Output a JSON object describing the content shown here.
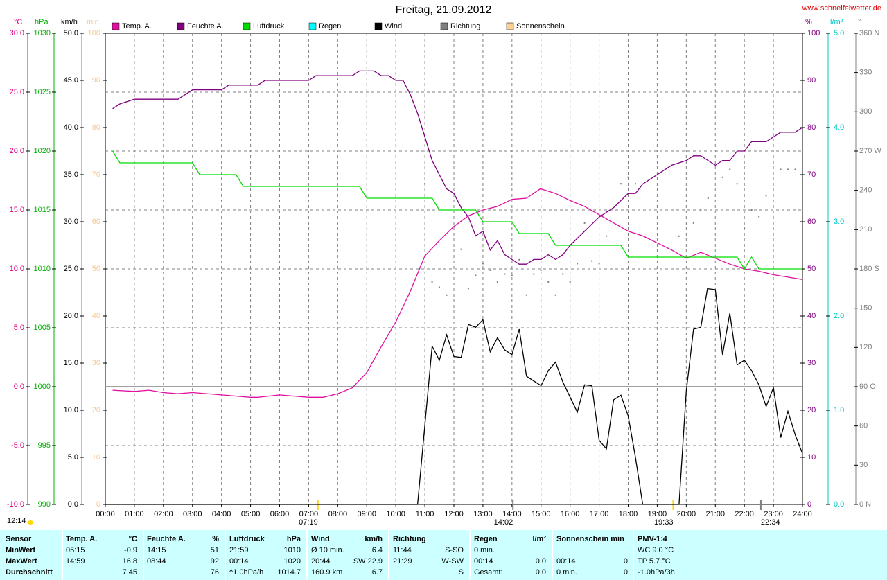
{
  "chart_data": {
    "type": "line",
    "title": "Freitag, 21.09.2012",
    "source": "www.schneifelwetter.de",
    "update_time": "12:14",
    "grid": true,
    "xlim": [
      0,
      24
    ],
    "xticks": [
      {
        "value": 0,
        "label": "00:00"
      },
      {
        "value": 1,
        "label": "01:00"
      },
      {
        "value": 2,
        "label": "02:00"
      },
      {
        "value": 3,
        "label": "03:00"
      },
      {
        "value": 4,
        "label": "04:00"
      },
      {
        "value": 5,
        "label": "05:00"
      },
      {
        "value": 6,
        "label": "06:00"
      },
      {
        "value": 7,
        "label": "07:00"
      },
      {
        "value": 8,
        "label": "08:00"
      },
      {
        "value": 9,
        "label": "09:00"
      },
      {
        "value": 10,
        "label": "10:00"
      },
      {
        "value": 11,
        "label": "11:00"
      },
      {
        "value": 12,
        "label": "12:00"
      },
      {
        "value": 13,
        "label": "13:00"
      },
      {
        "value": 14,
        "label": "14:00"
      },
      {
        "value": 15,
        "label": "15:00"
      },
      {
        "value": 16,
        "label": "16:00"
      },
      {
        "value": 17,
        "label": "17:00"
      },
      {
        "value": 18,
        "label": "18:00"
      },
      {
        "value": 19,
        "label": "19:00"
      },
      {
        "value": 20,
        "label": "20:00"
      },
      {
        "value": 21,
        "label": "21:00"
      },
      {
        "value": 22,
        "label": "22:00"
      },
      {
        "value": 23,
        "label": "23:00"
      },
      {
        "value": 24,
        "label": "24:00"
      }
    ],
    "time_markers": [
      {
        "value": 7.317,
        "label": "07:19",
        "color": "#ffd700"
      },
      {
        "value": 14.033,
        "label": "14:02",
        "color": "#808080"
      },
      {
        "value": 19.55,
        "label": "19:33",
        "color": "#ffd700"
      },
      {
        "value": 22.567,
        "label": "22:34",
        "color": "#808080"
      }
    ],
    "axes": {
      "temp": {
        "unit": "°C",
        "color": "#e0007f",
        "lim": [
          -10,
          30
        ],
        "ticks": [
          {
            "value": -10,
            "label": "-10.0"
          },
          {
            "value": -5,
            "label": "-5.0"
          },
          {
            "value": 0,
            "label": "0.0"
          },
          {
            "value": 5,
            "label": "5.0"
          },
          {
            "value": 10,
            "label": "10.0"
          },
          {
            "value": 15,
            "label": "15.0"
          },
          {
            "value": 20,
            "label": "20.0"
          },
          {
            "value": 25,
            "label": "25.0"
          },
          {
            "value": 30,
            "label": "30.0"
          }
        ]
      },
      "pressure": {
        "unit": "hPa",
        "color": "#00b000",
        "lim": [
          990,
          1030
        ],
        "ticks": [
          990,
          995,
          1000,
          1005,
          1010,
          1015,
          1020,
          1025,
          1030
        ]
      },
      "wind": {
        "unit": "km/h",
        "color": "#000000",
        "lim": [
          0,
          50
        ],
        "ticks": [
          {
            "value": 0,
            "label": "0.0"
          },
          {
            "value": 5,
            "label": "5.0"
          },
          {
            "value": 10,
            "label": "10.0"
          },
          {
            "value": 15,
            "label": "15.0"
          },
          {
            "value": 20,
            "label": "20.0"
          },
          {
            "value": 25,
            "label": "25.0"
          },
          {
            "value": 30,
            "label": "30.0"
          },
          {
            "value": 35,
            "label": "35.0"
          },
          {
            "value": 40,
            "label": "40.0"
          },
          {
            "value": 45,
            "label": "45.0"
          },
          {
            "value": 50,
            "label": "50.0"
          }
        ]
      },
      "sun": {
        "unit": "min",
        "color": "#f8c890",
        "lim": [
          0,
          100
        ],
        "ticks": [
          0,
          10,
          20,
          30,
          40,
          50,
          60,
          70,
          80,
          90,
          100
        ]
      },
      "humidity": {
        "unit": "%",
        "color": "#800080",
        "lim": [
          0,
          100
        ],
        "ticks": [
          0,
          10,
          20,
          30,
          40,
          50,
          60,
          70,
          80,
          90,
          100
        ]
      },
      "rain": {
        "unit": "l/m²",
        "color": "#00c8c8",
        "lim": [
          0,
          5
        ],
        "ticks": [
          {
            "value": 0,
            "label": "0.0"
          },
          {
            "value": 1,
            "label": "1.0"
          },
          {
            "value": 2,
            "label": "2.0"
          },
          {
            "value": 3,
            "label": "3.0"
          },
          {
            "value": 4,
            "label": "4.0"
          },
          {
            "value": 5,
            "label": "5.0"
          }
        ]
      },
      "direction": {
        "unit": "°",
        "color": "#808080",
        "lim": [
          0,
          360
        ],
        "ticks": [
          {
            "value": 0,
            "label": "0  N"
          },
          30,
          60,
          {
            "value": 90,
            "label": "90  O"
          },
          120,
          150,
          {
            "value": 180,
            "label": "180  S"
          },
          210,
          240,
          {
            "value": 270,
            "label": "270  W"
          },
          300,
          330,
          {
            "value": 360,
            "label": "360  N"
          }
        ]
      }
    },
    "series": [
      {
        "name": "Temp. A.",
        "color": "#e0109f",
        "axis": "temp",
        "type": "line",
        "x": [
          0.25,
          1,
          1.5,
          2,
          2.5,
          3,
          4,
          5,
          5.25,
          6,
          7,
          7.5,
          8,
          8.5,
          9,
          9.5,
          10,
          10.5,
          11,
          11.5,
          12,
          12.5,
          13,
          13.5,
          14,
          14.5,
          14.98,
          15.5,
          16,
          16.5,
          17,
          17.5,
          18,
          18.5,
          19,
          19.5,
          20,
          20.5,
          21,
          21.5,
          22,
          22.5,
          23,
          23.5,
          24
        ],
        "values": [
          -0.3,
          -0.4,
          -0.3,
          -0.5,
          -0.6,
          -0.5,
          -0.7,
          -0.9,
          -0.9,
          -0.7,
          -0.9,
          -0.9,
          -0.6,
          -0.1,
          1.2,
          3.4,
          5.5,
          8.1,
          11.1,
          12.4,
          13.6,
          14.5,
          15.0,
          15.3,
          15.9,
          16.0,
          16.8,
          16.4,
          15.8,
          15.3,
          14.6,
          13.9,
          13.2,
          12.8,
          12.2,
          11.6,
          10.9,
          11.4,
          10.9,
          10.4,
          10.0,
          9.8,
          9.5,
          9.3,
          9.1
        ]
      },
      {
        "name": "Feuchte A.",
        "color": "#800080",
        "axis": "humidity",
        "type": "line",
        "x": [
          0.25,
          0.5,
          1,
          2.5,
          2.75,
          3,
          4,
          4.25,
          5.25,
          5.5,
          7,
          7.25,
          8.5,
          8.75,
          9.25,
          9.5,
          9.75,
          10,
          10.25,
          10.5,
          10.75,
          11,
          11.25,
          11.5,
          11.75,
          12,
          12.25,
          12.5,
          12.75,
          13,
          13.25,
          13.5,
          13.75,
          14,
          14.25,
          14.5,
          14.75,
          15,
          15.25,
          15.5,
          15.75,
          16,
          16.5,
          17,
          17.5,
          18,
          18.25,
          18.5,
          19,
          19.5,
          20,
          20.25,
          20.5,
          21,
          21.25,
          21.5,
          21.75,
          22,
          22.25,
          22.75,
          23.25,
          23.75,
          24
        ],
        "values": [
          84,
          85,
          86,
          86,
          87,
          88,
          88,
          89,
          89,
          90,
          90,
          91,
          91,
          92,
          92,
          91,
          91,
          90,
          90,
          87,
          83,
          78,
          73,
          70,
          67,
          66,
          63,
          61,
          57,
          58,
          54,
          56,
          53,
          52,
          51,
          51,
          52,
          52,
          53,
          52,
          53,
          55,
          58,
          61,
          63,
          66,
          66,
          68,
          70,
          72,
          73,
          74,
          74,
          72,
          73,
          73,
          75,
          75,
          77,
          77,
          79,
          79,
          80
        ]
      },
      {
        "name": "Luftdruck",
        "color": "#00dd00",
        "axis": "pressure",
        "type": "line",
        "x": [
          0.25,
          0.5,
          3,
          3.25,
          4.5,
          4.75,
          8.75,
          9,
          11.25,
          11.5,
          12.75,
          13,
          14,
          14.25,
          15.25,
          15.5,
          17.75,
          18,
          21.75,
          22,
          22.25,
          22.5,
          24
        ],
        "values": [
          1020,
          1019,
          1019,
          1018,
          1018,
          1017,
          1017,
          1016,
          1016,
          1015,
          1015,
          1014,
          1014,
          1013,
          1013,
          1012,
          1012,
          1011,
          1011,
          1010,
          1011,
          1010,
          1010
        ]
      },
      {
        "name": "Regen",
        "color": "#00ffff",
        "axis": "rain",
        "type": "line",
        "x": [],
        "values": []
      },
      {
        "name": "Wind",
        "color": "#000000",
        "axis": "wind",
        "type": "line",
        "x": [
          0,
          10.75,
          11.25,
          11.5,
          11.75,
          12,
          12.25,
          12.5,
          12.75,
          13,
          13.25,
          13.5,
          13.75,
          14,
          14.25,
          14.5,
          15,
          15.25,
          15.5,
          15.75,
          16.25,
          16.5,
          16.75,
          17,
          17.25,
          17.5,
          17.75,
          18,
          18.25,
          18.5,
          19.75,
          20,
          20.25,
          20.5,
          20.73,
          21,
          21.25,
          21.5,
          21.75,
          22,
          22.25,
          22.5,
          22.75,
          23,
          23.25,
          23.5,
          23.75,
          24
        ],
        "values": [
          0,
          0,
          16.8,
          15.3,
          18.0,
          15.7,
          15.6,
          19.1,
          18.8,
          19.6,
          16.2,
          17.7,
          16.4,
          15.9,
          18.6,
          13.6,
          12.6,
          14.2,
          15.1,
          13.0,
          9.8,
          12.7,
          12.6,
          6.8,
          5.9,
          11.1,
          11.6,
          9.4,
          5.0,
          0,
          0,
          12.0,
          18.6,
          18.8,
          22.9,
          22.8,
          15.9,
          20.3,
          14.8,
          15.3,
          14.2,
          12.7,
          10.4,
          12.4,
          7.1,
          9.9,
          7.4,
          5.4
        ]
      },
      {
        "name": "Richtung",
        "color": "#808080",
        "axis": "direction",
        "type": "scatter",
        "x": [
          11,
          11.25,
          11.5,
          11.75,
          12.25,
          12.5,
          12.75,
          13,
          13.25,
          13.5,
          13.75,
          14,
          14.25,
          14.5,
          14.75,
          15,
          15.25,
          15.5,
          15.75,
          16,
          16.25,
          16.5,
          16.75,
          17,
          17.25,
          17.75,
          18,
          18.25,
          19.75,
          20.25,
          20.5,
          20.75,
          21.25,
          21.5,
          21.75,
          22,
          22.25,
          22.5,
          22.75,
          23.25,
          23.5,
          23.75
        ],
        "values": [
          245,
          170,
          166,
          160,
          195,
          165,
          175,
          184,
          179,
          170,
          176,
          175,
          187,
          160,
          176,
          179,
          170,
          160,
          176,
          170,
          184,
          215,
          186,
          184,
          205,
          245,
          250,
          245,
          205,
          215,
          225,
          234,
          250,
          256,
          245,
          211,
          225,
          220,
          236,
          256,
          256,
          256
        ]
      },
      {
        "name": "Sonnenschein",
        "color": "#ffd090",
        "axis": "sun",
        "type": "line",
        "x": [],
        "values": []
      }
    ]
  },
  "stats": {
    "header": [
      {
        "left": "Sensor"
      },
      {
        "left": "Temp. A.",
        "right": "°C"
      },
      {
        "left": "Feuchte A.",
        "right": "%"
      },
      {
        "left": "Luftdruck",
        "right": "hPa"
      },
      {
        "left": "Wind",
        "right": "km/h"
      },
      {
        "left": "Richtung"
      },
      {
        "left": "Regen",
        "right": "l/m²"
      },
      {
        "left": "Sonnenschein min"
      },
      {
        "left": "PMV-1:4"
      }
    ],
    "rows": [
      [
        {
          "left": "MinWert"
        },
        {
          "left": "05:15",
          "right": "-0.9"
        },
        {
          "left": "14:15",
          "right": "51"
        },
        {
          "left": "21:59",
          "right": "1010"
        },
        {
          "left": "Ø 10 min.",
          "right": "6.4"
        },
        {
          "left": "11:44",
          "right": "S-SO"
        },
        {
          "left": "0 min."
        },
        {},
        {
          "left": "WC 9.0 °C"
        }
      ],
      [
        {
          "left": "MaxWert"
        },
        {
          "left": "14:59",
          "right": "16.8"
        },
        {
          "left": "08:44",
          "right": "92"
        },
        {
          "left": "00:14",
          "right": "1020"
        },
        {
          "left": "20:44",
          "right": "SW 22.9"
        },
        {
          "left": "21:29",
          "right": "W-SW"
        },
        {
          "left": "00:14",
          "right": "0.0"
        },
        {
          "left": "00:14",
          "right": "0"
        },
        {
          "left": "TP 5.7 °C"
        }
      ],
      [
        {
          "left": "Durchschnitt"
        },
        {
          "right": "7.45"
        },
        {
          "right": "76"
        },
        {
          "left": "^1.0hPa/h",
          "right": "1014.7"
        },
        {
          "left": "160.9 km",
          "right": "6.7"
        },
        {
          "right": "S"
        },
        {
          "left": "Gesamt:",
          "right": "0.0"
        },
        {
          "left": "0 min.",
          "right": "0"
        },
        {
          "left": "-1.0hPa/3h"
        }
      ]
    ]
  }
}
